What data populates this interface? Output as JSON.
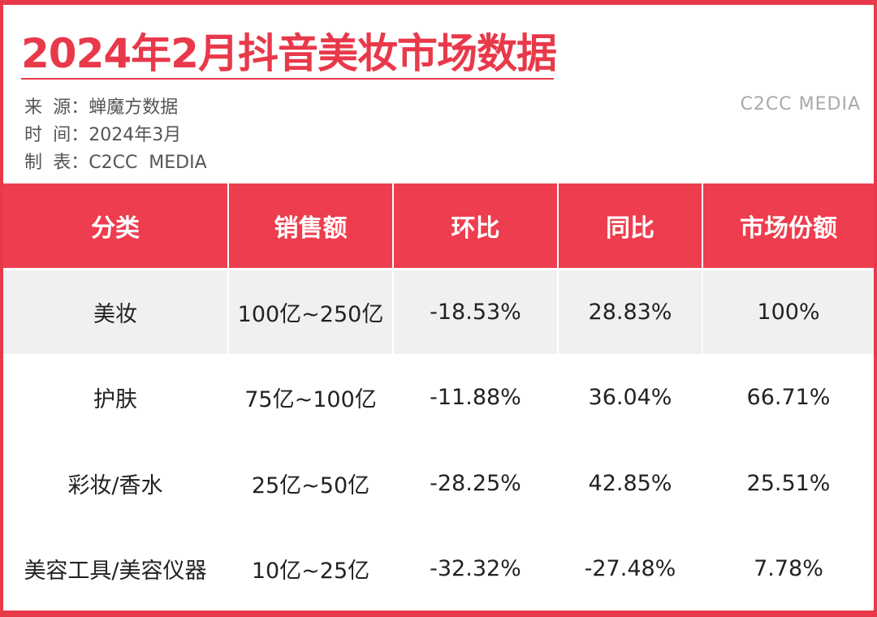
{
  "title": "2024年2月抖音美妆市场数据",
  "meta": [
    {
      "key": "来源",
      "value": "蝉魔方数据"
    },
    {
      "key": "时间",
      "value": "2024年3月"
    },
    {
      "key": "制表",
      "value": "C2CC  MEDIA"
    }
  ],
  "watermark": "C2CC MEDIA",
  "brand_color": "#e8394a",
  "table": {
    "headers": [
      "分类",
      "销售额",
      "环比",
      "同比",
      "市场份额"
    ],
    "rows": [
      [
        "美妆",
        "100亿~250亿",
        "-18.53%",
        "28.83%",
        "100%"
      ],
      [
        "护肤",
        "75亿~100亿",
        "-11.88%",
        "36.04%",
        "66.71%"
      ],
      [
        "彩妆/香水",
        "25亿~50亿",
        "-28.25%",
        "42.85%",
        "25.51%"
      ],
      [
        "美容工具/美容仪器",
        "10亿~25亿",
        "-32.32%",
        "-27.48%",
        "7.78%"
      ]
    ]
  }
}
